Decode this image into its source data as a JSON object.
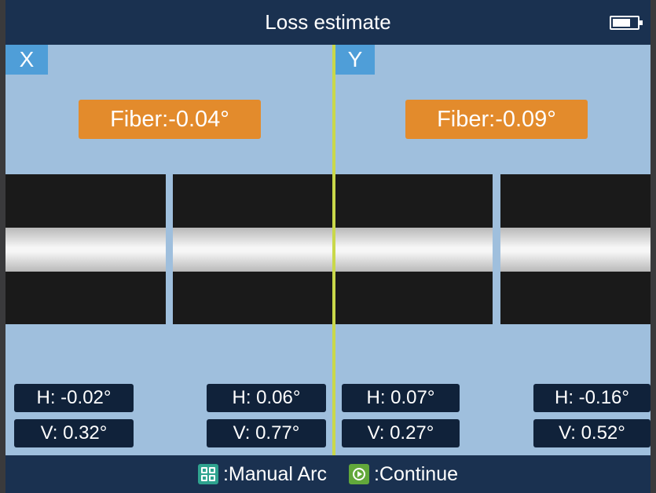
{
  "header": {
    "title": "Loss estimate",
    "battery_icon": "battery-icon"
  },
  "views": {
    "x": {
      "label": "X",
      "fiber": "Fiber:-0.04°",
      "left_fiber": {
        "h": "H: -0.02°",
        "v": "V: 0.32°"
      },
      "right_fiber": {
        "h": "H: 0.06°",
        "v": "V: 0.77°"
      }
    },
    "y": {
      "label": "Y",
      "fiber": "Fiber:-0.09°",
      "left_fiber": {
        "h": "H: 0.07°",
        "v": "V: 0.27°"
      },
      "right_fiber": {
        "h": "H: -0.16°",
        "v": "V: 0.52°"
      }
    }
  },
  "footer": {
    "manual_arc_label": ":Manual Arc",
    "continue_label": ":Continue",
    "manual_arc_icon": "grid-key-icon",
    "continue_icon": "play-circle-icon"
  },
  "colors": {
    "view_background": "#9fbfdd",
    "bar_background": "#1a3150",
    "fiber_badge": "#e38b2c",
    "axis_tag": "#4f9ed8",
    "divider": "#c9d84a"
  }
}
